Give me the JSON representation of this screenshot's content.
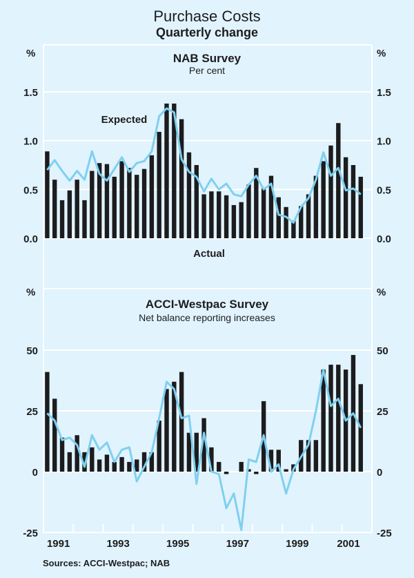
{
  "chart_data": {
    "type": "bar",
    "title": "Purchase Costs",
    "subtitle": "Quarterly change",
    "source": "Sources: ACCI-Westpac; NAB",
    "x_start": "1991 Q1",
    "x_end": "2001 Q3",
    "x_tick_labels": [
      "1991",
      "1993",
      "1995",
      "1997",
      "1999",
      "2001"
    ],
    "colors": {
      "background": "#e1f3fd",
      "bars": "#1c1c1e",
      "line": "#7fd0f0",
      "grid": "#ffffff"
    },
    "panels": [
      {
        "title": "NAB Survey",
        "subtitle": "Per cent",
        "unit": "%",
        "ylim": [
          0,
          2.0
        ],
        "y_ticks": [
          "0.0",
          "0.5",
          "1.0",
          "1.5"
        ],
        "y_tick_values": [
          0,
          0.5,
          1.0,
          1.5
        ],
        "annotations": {
          "line": "Expected",
          "bars": "Actual"
        },
        "series": [
          {
            "name": "Actual",
            "type": "bar",
            "values": [
              0.89,
              0.6,
              0.39,
              0.49,
              0.6,
              0.39,
              0.69,
              0.77,
              0.76,
              0.63,
              0.79,
              0.72,
              0.65,
              0.71,
              0.85,
              1.09,
              1.38,
              1.38,
              1.22,
              0.88,
              0.75,
              0.45,
              0.48,
              0.48,
              0.44,
              0.34,
              0.37,
              0.55,
              0.72,
              0.51,
              0.64,
              0.42,
              0.32,
              0.18,
              0.33,
              0.45,
              0.64,
              0.79,
              0.95,
              1.18,
              0.83,
              0.75,
              0.63
            ]
          },
          {
            "name": "Expected",
            "type": "line",
            "values": [
              0.7,
              0.8,
              0.69,
              0.59,
              0.69,
              0.6,
              0.89,
              0.66,
              0.59,
              0.71,
              0.83,
              0.68,
              0.77,
              0.79,
              0.89,
              1.25,
              1.33,
              1.29,
              0.81,
              0.68,
              0.63,
              0.48,
              0.61,
              0.5,
              0.56,
              0.45,
              0.43,
              0.55,
              0.64,
              0.5,
              0.56,
              0.24,
              0.22,
              0.16,
              0.32,
              0.41,
              0.6,
              0.88,
              0.64,
              0.72,
              0.49,
              0.51,
              0.45
            ]
          }
        ]
      },
      {
        "title": "ACCI-Westpac Survey",
        "subtitle": "Net balance reporting increases",
        "unit": "%",
        "ylim": [
          -25,
          50
        ],
        "y_ticks": [
          "-25",
          "0",
          "25",
          "50"
        ],
        "y_tick_values": [
          -25,
          0,
          25,
          50
        ],
        "series": [
          {
            "name": "Actual",
            "type": "bar",
            "values": [
              41,
              30,
              14,
              8,
              15,
              8,
              10,
              5,
              7,
              4,
              6,
              4,
              5,
              8,
              8,
              21,
              34,
              37,
              41,
              16,
              16,
              22,
              10,
              4,
              -1,
              0,
              4,
              1,
              -1,
              29,
              9,
              9,
              1,
              3,
              13,
              13,
              13,
              42,
              44,
              44,
              42,
              48,
              36
            ]
          },
          {
            "name": "Expected",
            "type": "line",
            "values": [
              24,
              21,
              13,
              14,
              11,
              2,
              15,
              9,
              12,
              4,
              9,
              10,
              -4,
              2,
              8,
              22,
              37,
              34,
              22,
              23,
              -5,
              16,
              0,
              -1,
              -15,
              -9,
              -24,
              5,
              4,
              15,
              0,
              3,
              -9,
              1,
              6,
              11,
              25,
              42,
              27,
              30,
              21,
              24,
              18
            ]
          }
        ]
      }
    ]
  }
}
